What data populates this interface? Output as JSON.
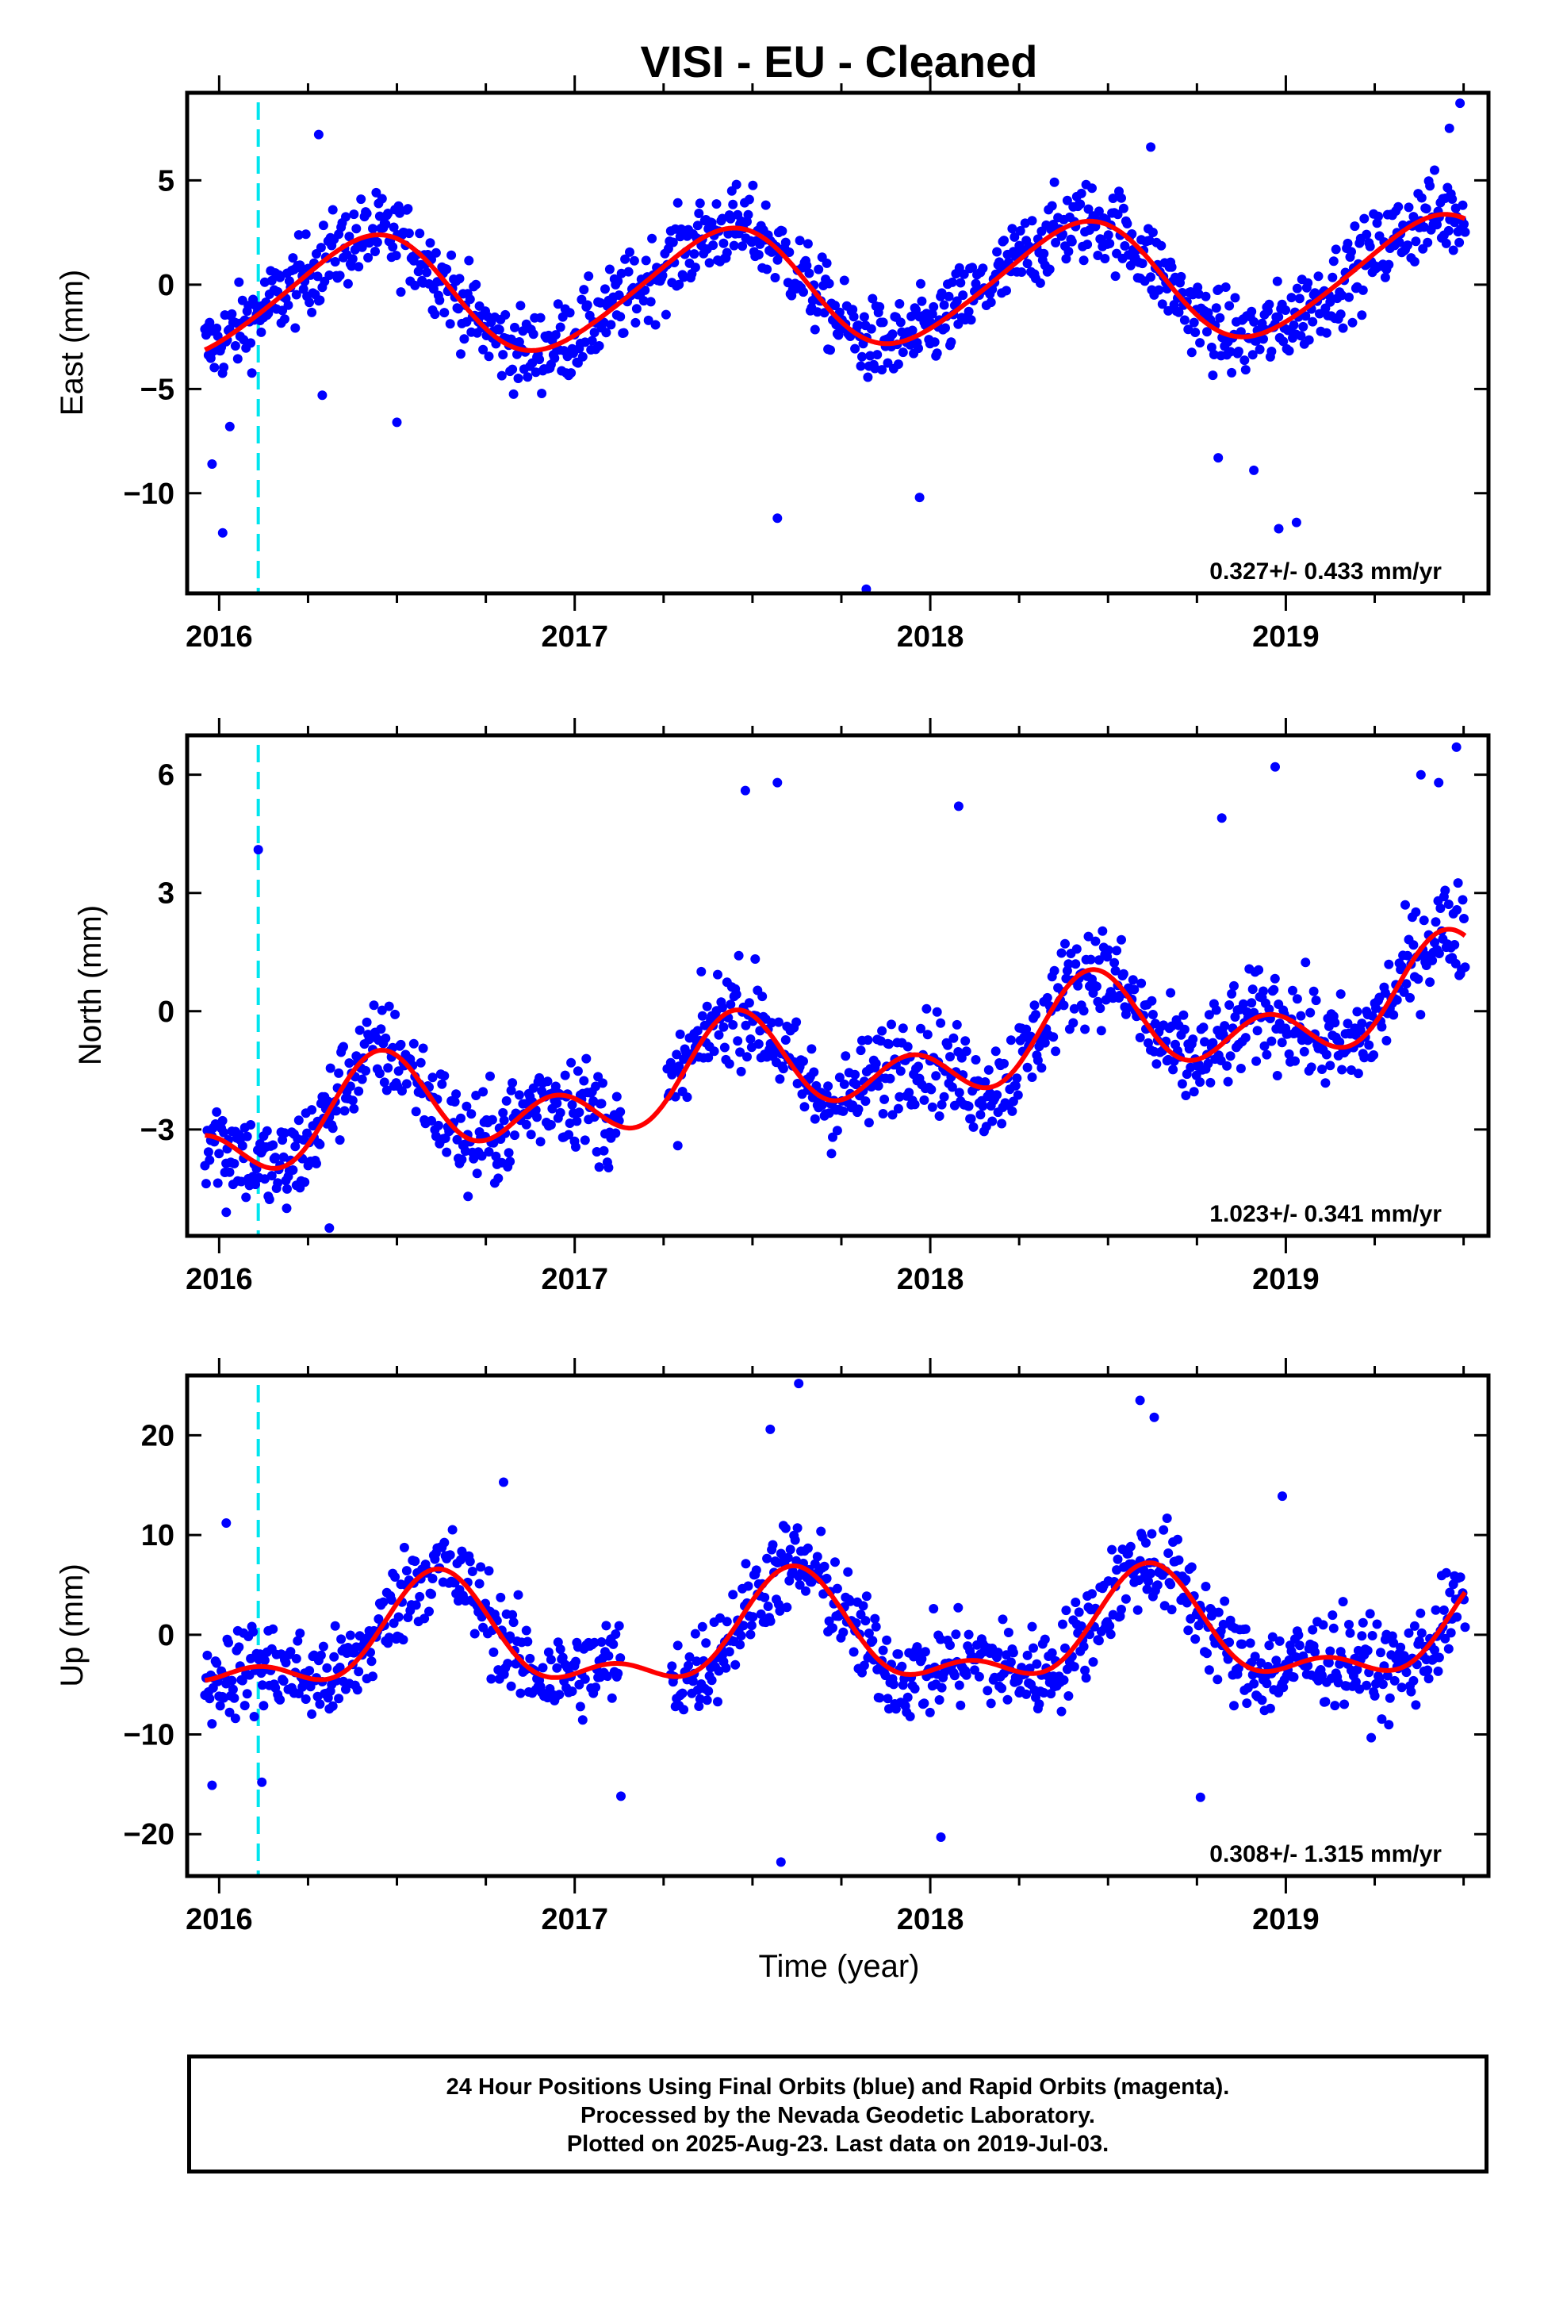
{
  "colors": {
    "final": "#0000ff",
    "model": "#ff0000",
    "event": "#00e5ee",
    "frame": "#000000"
  },
  "chart_data": {
    "type": "scatter",
    "title": "VISI  - EU - Cleaned",
    "xlabel": "Time (year)",
    "xlim": [
      2015.91,
      2019.57
    ],
    "x_ticks": [
      "2016",
      "2017",
      "2018",
      "2019"
    ],
    "event_line_x": 2016.11,
    "panels": [
      {
        "ylabel": "East (mm)",
        "ylim": [
          -14.8,
          9.2
        ],
        "y_ticks": [
          "5",
          "0",
          "−5",
          "−10"
        ],
        "rate_label": "0.327+/- 0.433 mm/yr",
        "seasonal": {
          "base": -0.1,
          "rate": 0.327,
          "cos": -2.4,
          "sin": 1.4,
          "cos2": 0.3,
          "sin2": 0.1
        },
        "noise": 1.6,
        "series": [
          {
            "name": "model",
            "style": "line"
          },
          {
            "name": "final",
            "style": "points",
            "x": [
              2015.98,
              2016.01,
              2016.03,
              2016.28,
              2016.29,
              2016.5,
              2017.57,
              2017.82,
              2017.97,
              2018.62,
              2018.81,
              2018.91,
              2018.98,
              2019.03,
              2019.46,
              2019.49
            ],
            "values": [
              -8.6,
              -11.9,
              -6.8,
              7.2,
              -5.3,
              -6.6,
              -11.2,
              -14.6,
              -10.2,
              6.6,
              -8.3,
              -8.9,
              -11.7,
              -11.4,
              7.5,
              8.7
            ]
          }
        ]
      },
      {
        "ylabel": "North (mm)",
        "ylim": [
          -5.7,
          7.0
        ],
        "y_ticks": [
          "6",
          "3",
          "0",
          "−3"
        ],
        "rate_label": "1.023+/- 0.341 mm/yr",
        "seasonal": {
          "base": -1.4,
          "rate": 1.023,
          "cos": -0.8,
          "sin": 0.2,
          "cos2": 0.7,
          "sin2": -0.5
        },
        "noise": 1.0,
        "series": [
          {
            "name": "model",
            "style": "line"
          },
          {
            "name": "final",
            "style": "points",
            "x": [
              2016.11,
              2016.02,
              2016.19,
              2016.31,
              2016.7,
              2017.48,
              2017.57,
              2018.08,
              2018.82,
              2018.97,
              2019.38,
              2019.43,
              2019.48
            ],
            "values": [
              4.1,
              -5.1,
              -5.0,
              -5.5,
              -4.7,
              5.6,
              5.8,
              5.2,
              4.9,
              6.2,
              6.0,
              5.8,
              6.7
            ]
          }
        ]
      },
      {
        "ylabel": "Up (mm)",
        "ylim": [
          -24.2,
          26.0
        ],
        "y_ticks": [
          "20",
          "10",
          "0",
          "−10",
          "−20"
        ],
        "rate_label": "0.308+/- 1.315 mm/yr",
        "seasonal": {
          "base": -0.4,
          "rate": 0.308,
          "cos": -3.6,
          "sin": -3.2,
          "cos2": 0.3,
          "sin2": 2.5
        },
        "noise": 3.8,
        "series": [
          {
            "name": "model",
            "style": "line"
          },
          {
            "name": "final",
            "style": "points",
            "x": [
              2015.98,
              2016.02,
              2016.12,
              2016.8,
              2017.13,
              2017.55,
              2017.58,
              2017.63,
              2018.03,
              2018.59,
              2018.63,
              2018.76,
              2018.99
            ],
            "values": [
              -15.1,
              11.2,
              -14.8,
              15.3,
              -16.2,
              20.6,
              -22.8,
              25.2,
              -20.3,
              23.5,
              21.8,
              -16.3,
              13.9
            ]
          }
        ]
      }
    ]
  },
  "footer": {
    "line1": "24 Hour Positions Using Final Orbits (blue) and Rapid Orbits (magenta).",
    "line2": "Processed by the Nevada Geodetic Laboratory.",
    "line3": "Plotted on 2025-Aug-23. Last data on 2019-Jul-03."
  }
}
